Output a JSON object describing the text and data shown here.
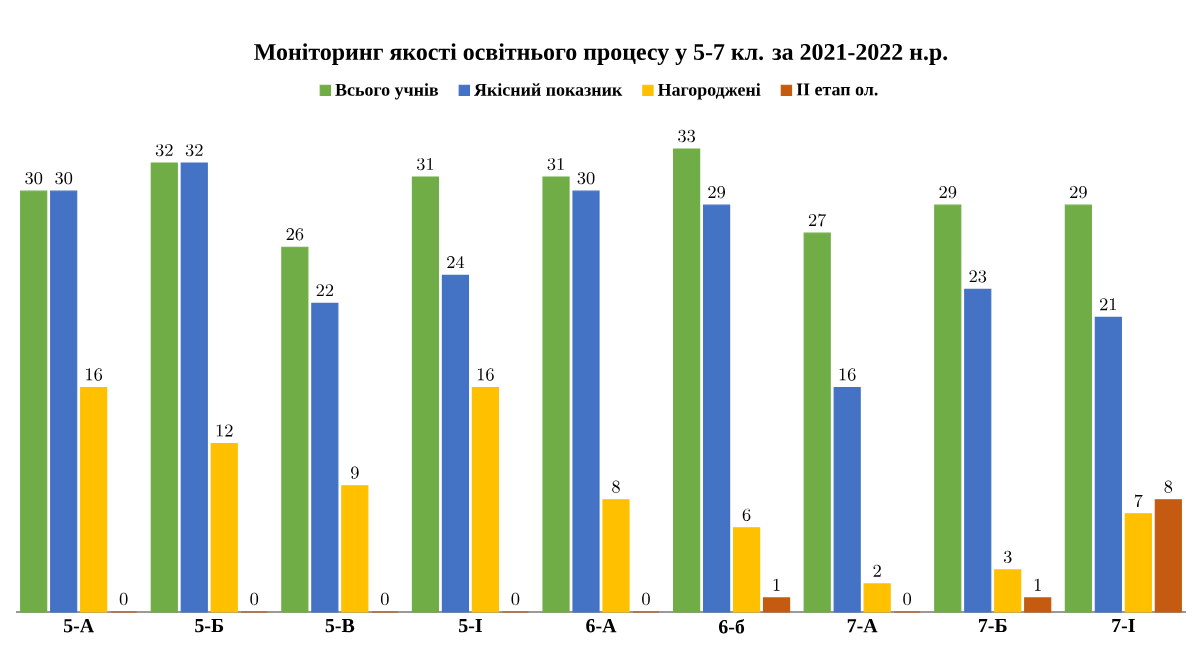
{
  "chart_data": {
    "type": "bar",
    "title": "Моніторинг якості освітнього процесу у 5-7 кл. за 2021-2022 н.р.",
    "categories": [
      "5-А",
      "5-Б",
      "5-В",
      "5-І",
      "6-А",
      "6-б",
      "7-А",
      "7-Б",
      "7-І"
    ],
    "series": [
      {
        "name": "Всього учнів",
        "color": "#70ad47",
        "values": [
          30,
          32,
          26,
          31,
          31,
          33,
          27,
          29,
          29
        ]
      },
      {
        "name": "Якісний показник",
        "color": "#4472c4",
        "values": [
          30,
          32,
          22,
          24,
          30,
          29,
          16,
          23,
          21
        ]
      },
      {
        "name": "Нагороджені",
        "color": "#ffc000",
        "values": [
          16,
          12,
          9,
          16,
          8,
          6,
          2,
          3,
          7
        ]
      },
      {
        "name": "ІІ етап ол.",
        "color": "#c55a11",
        "values": [
          0,
          0,
          0,
          0,
          0,
          1,
          0,
          1,
          8
        ]
      }
    ],
    "data_labels": true,
    "legend": "top"
  }
}
